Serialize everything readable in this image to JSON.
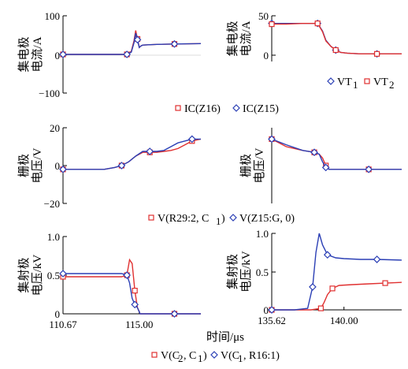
{
  "chart_data": [
    {
      "type": "line",
      "ylabel": "集电极\n电流/A",
      "ylim": [
        -100,
        100
      ],
      "yticks": [
        "100",
        "0",
        "−100"
      ],
      "xlim": [
        110.67,
        118.5
      ],
      "legend": "bottom",
      "series": [
        {
          "name": "IC(Z16)",
          "color": "#e03030",
          "marker": "square",
          "x": [
            110.67,
            112.0,
            113.0,
            114.0,
            114.3,
            114.55,
            114.7,
            114.8,
            114.9,
            115.0,
            115.1,
            115.2,
            115.5,
            116.0,
            117.0,
            118.5
          ],
          "y": [
            0,
            0,
            0,
            0,
            0,
            8,
            35,
            62,
            40,
            18,
            22,
            24,
            25,
            26,
            27,
            28
          ]
        },
        {
          "name": "IC(Z15)",
          "color": "#2b3fb5",
          "marker": "diamond",
          "x": [
            110.67,
            112.0,
            113.0,
            114.0,
            114.3,
            114.55,
            114.7,
            114.8,
            114.9,
            115.0,
            115.1,
            115.2,
            115.5,
            116.0,
            117.0,
            118.5
          ],
          "y": [
            0,
            0,
            0,
            0,
            0,
            6,
            30,
            55,
            38,
            18,
            22,
            24,
            25,
            26,
            27,
            28
          ]
        }
      ]
    },
    {
      "type": "line",
      "ylabel": "集电极\n电流/A",
      "ylim": [
        -10,
        50
      ],
      "yticks": [
        "50",
        "0"
      ],
      "xlim": [
        135.62,
        143.5
      ],
      "legend": "bottom",
      "series": [
        {
          "name": "VT1",
          "color": "#2b3fb5",
          "marker": "diamond",
          "x": [
            135.62,
            136.5,
            137.5,
            138.4,
            138.7,
            138.9,
            139.2,
            139.5,
            139.8,
            140.2,
            141.0,
            142.0,
            143.5
          ],
          "y": [
            40,
            40,
            40,
            40,
            30,
            18,
            10,
            5,
            2,
            1,
            0,
            0,
            0
          ]
        },
        {
          "name": "VT2",
          "color": "#e03030",
          "marker": "square",
          "x": [
            135.62,
            136.5,
            137.5,
            138.4,
            138.7,
            138.9,
            139.2,
            139.5,
            139.8,
            140.2,
            141.0,
            142.0,
            143.5
          ],
          "y": [
            39,
            39,
            40,
            40,
            29,
            17,
            10,
            5,
            2,
            1,
            0,
            0,
            0
          ]
        }
      ]
    },
    {
      "type": "line",
      "ylabel": "栅极\n电压/V",
      "ylim": [
        -20,
        20
      ],
      "yticks": [
        "20",
        "0",
        "−20"
      ],
      "xlim": [
        110.67,
        118.5
      ],
      "legend": "bottom",
      "series": [
        {
          "name": "V(R29:2, C1)",
          "color": "#e03030",
          "marker": "square",
          "x": [
            110.67,
            112.0,
            113.0,
            113.6,
            114.0,
            114.4,
            114.8,
            115.2,
            115.6,
            116.0,
            116.4,
            116.8,
            117.2,
            117.6,
            118.0,
            118.5
          ],
          "y": [
            -2,
            -2,
            -2,
            -1,
            0,
            2,
            5,
            7,
            7,
            7,
            7.5,
            8,
            9,
            11,
            13,
            14
          ]
        },
        {
          "name": "V(Z15:G, 0)",
          "color": "#2b3fb5",
          "marker": "diamond",
          "x": [
            110.67,
            112.0,
            113.0,
            113.6,
            114.0,
            114.4,
            114.8,
            115.2,
            115.6,
            116.0,
            116.4,
            116.8,
            117.2,
            117.6,
            118.0,
            118.5
          ],
          "y": [
            -2,
            -2,
            -2,
            -1,
            0,
            2,
            5,
            7.5,
            7.5,
            7.5,
            8,
            10,
            12,
            13,
            14,
            14
          ]
        }
      ]
    },
    {
      "type": "line",
      "ylabel": "栅极\n电压/V",
      "ylim": [
        -20,
        20
      ],
      "yticks": [],
      "xlim": [
        135.62,
        143.5
      ],
      "legend": "bottom",
      "series": [
        {
          "name": "V(R29:2, C1)",
          "color": "#e03030",
          "marker": "square",
          "x": [
            135.62,
            136.5,
            137.5,
            138.2,
            138.5,
            138.7,
            138.9,
            139.1,
            139.5,
            140.5,
            141.5,
            143.5
          ],
          "y": [
            14,
            10,
            8,
            7,
            6,
            4,
            0,
            -2,
            -2,
            -2,
            -2,
            -2
          ]
        },
        {
          "name": "V(Z15:G, 0)",
          "color": "#2b3fb5",
          "marker": "diamond",
          "x": [
            135.62,
            136.5,
            137.5,
            138.2,
            138.5,
            138.7,
            138.9,
            139.1,
            139.5,
            140.5,
            141.5,
            143.5
          ],
          "y": [
            14,
            11,
            8,
            7,
            6,
            2,
            -1,
            -2,
            -2,
            -2,
            -2,
            -2
          ]
        }
      ]
    },
    {
      "type": "line",
      "ylabel": "集射极\n电压/kV",
      "ylim": [
        0,
        1.0
      ],
      "yticks": [
        "1.0",
        "0.5",
        "0"
      ],
      "xlim": [
        110.67,
        118.5
      ],
      "xticks": [
        110.67,
        115.0
      ],
      "xtick_labels": [
        "110.67",
        "115.00"
      ],
      "legend": "bottom",
      "series": [
        {
          "name": "V(C2, C1)",
          "color": "#e03030",
          "marker": "square",
          "x": [
            110.67,
            112.0,
            113.0,
            114.0,
            114.3,
            114.45,
            114.6,
            114.75,
            114.9,
            115.05,
            115.3,
            116.0,
            117.0,
            118.5
          ],
          "y": [
            0.48,
            0.48,
            0.48,
            0.48,
            0.5,
            0.7,
            0.65,
            0.3,
            0.08,
            0.0,
            0.0,
            0.0,
            0.0,
            0.0
          ]
        },
        {
          "name": "V(C1, R16:1)",
          "color": "#2b3fb5",
          "marker": "diamond",
          "x": [
            110.67,
            112.0,
            113.0,
            114.0,
            114.3,
            114.45,
            114.6,
            114.75,
            114.9,
            115.05,
            115.3,
            116.0,
            117.0,
            118.5
          ],
          "y": [
            0.52,
            0.52,
            0.52,
            0.52,
            0.5,
            0.4,
            0.2,
            0.12,
            0.08,
            0.0,
            0.0,
            0.0,
            0.0,
            0.0
          ]
        }
      ]
    },
    {
      "type": "line",
      "ylabel": "集射极\n电压/kV",
      "ylim": [
        0,
        1.0
      ],
      "yticks": [
        "1.0",
        "0.5",
        "0"
      ],
      "xlim": [
        135.62,
        143.5
      ],
      "xticks": [
        135.62,
        140.0
      ],
      "xtick_labels": [
        "135.62",
        "140.00"
      ],
      "legend": "bottom",
      "series": [
        {
          "name": "V(C2, C1)",
          "color": "#e03030",
          "marker": "square",
          "x": [
            135.62,
            137.0,
            138.0,
            138.6,
            138.8,
            139.0,
            139.3,
            139.7,
            140.5,
            141.5,
            142.5,
            143.5
          ],
          "y": [
            0,
            0,
            0,
            0.02,
            0.1,
            0.2,
            0.28,
            0.32,
            0.33,
            0.34,
            0.35,
            0.36
          ]
        },
        {
          "name": "V(C1, R16:1)",
          "color": "#2b3fb5",
          "marker": "diamond",
          "x": [
            135.62,
            137.0,
            137.8,
            138.1,
            138.3,
            138.5,
            138.7,
            139.0,
            139.5,
            140.0,
            141.0,
            142.0,
            143.5
          ],
          "y": [
            0,
            0,
            0.02,
            0.3,
            0.75,
            1.0,
            0.85,
            0.72,
            0.68,
            0.67,
            0.66,
            0.66,
            0.65
          ]
        }
      ]
    }
  ],
  "xlabel": "时间/μs",
  "legends": {
    "row1": "IC(Z16) IC(Z15)",
    "row1_right": "VT1 VT2",
    "row2": "V(R29:2, C1) V(Z15:G, 0)",
    "row3": "V(C2, C1) V(C1, R16:1)"
  }
}
